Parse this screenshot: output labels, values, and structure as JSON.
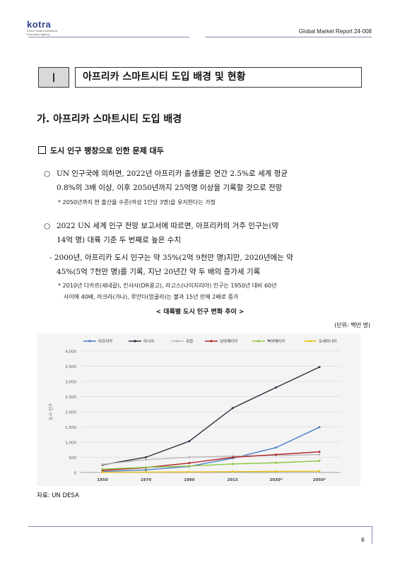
{
  "header": {
    "logo_word": "kotra",
    "logo_sub1": "Korea Trade-Investment",
    "logo_sub2": "Promotion Agency",
    "report": "Global Market Report 24-008"
  },
  "chapter": {
    "number": "Ⅰ",
    "title": "아프리카 스마트시티 도입 배경 및 현황"
  },
  "section_title": "가. 아프리카 스마트시티 도입 배경",
  "subsection_title": "도시 인구 팽창으로 인한 문제 대두",
  "bullet1": {
    "marker": "○",
    "line1": "UN 인구국에 의하면, 2022년 아프리카 출생률은 연간 2.5%로 세계 평균",
    "line2": "0.8%의 3배 이상, 이후 2050년까지 25억명 이상을 기록할 것으로 전망",
    "note": "* 2050년까지 현 출산율 수준(여성 1인당 3명)을 유지한다는 가정"
  },
  "bullet2": {
    "marker": "○",
    "line1": "2022 UN 세계 인구 전망 보고서에 따르면, 아프리카의 거주 인구는(약",
    "line2": "14억 명) 대륙 기준 두 번째로 높은 수치",
    "dash_line1": "- 2000년, 아프리카 도시 인구는 약 35%(2억 9천만 명)지만, 2020년에는 약",
    "dash_line2": "45%(5억 7천만 명)를 기록, 지난 20년간 약 두 배의 증가세 기록",
    "note_line1": "* 2010년 다카르(세네갈), 킨샤사(DR콩고), 라고스(나이지리아) 인구는 1950년 대비 60년",
    "note_line2": "사이에 40배, 아크라(가나), 루안다(앙골라)는 불과 15년 만에 2배로 증가"
  },
  "caption": "< 대륙별 도시 인구 변화 추이 >",
  "unit": "(단위: 백만 명)",
  "source": "자료: UN DESA",
  "page_number": "6",
  "chart_data": {
    "type": "line",
    "x": [
      "1950",
      "1970",
      "1990",
      "2015",
      "2030*",
      "2050*"
    ],
    "ylabel": "도시 인구",
    "ylim": [
      0,
      4000
    ],
    "yticks": [
      "0",
      "500",
      "1,000",
      "1,500",
      "2,000",
      "2,500",
      "3,000",
      "3,500",
      "4,000"
    ],
    "grid": true,
    "legend_position": "top",
    "series": [
      {
        "name": "아프리카",
        "color": "#4a7ec9",
        "values": [
          30,
          85,
          200,
          470,
          820,
          1490
        ]
      },
      {
        "name": "아시아",
        "color": "#2c3140",
        "values": [
          250,
          500,
          1030,
          2120,
          2800,
          3470
        ]
      },
      {
        "name": "유럽",
        "color": "#b8b8b8",
        "values": [
          270,
          420,
          500,
          540,
          560,
          590
        ]
      },
      {
        "name": "남아메리카",
        "color": "#b22a2a",
        "values": [
          70,
          160,
          310,
          500,
          590,
          680
        ]
      },
      {
        "name": "북아메리카",
        "color": "#8cc63f",
        "values": [
          110,
          170,
          210,
          280,
          320,
          380
        ]
      },
      {
        "name": "오세아니아",
        "color": "#e8c21a",
        "values": [
          8,
          14,
          19,
          27,
          33,
          42
        ]
      }
    ]
  }
}
